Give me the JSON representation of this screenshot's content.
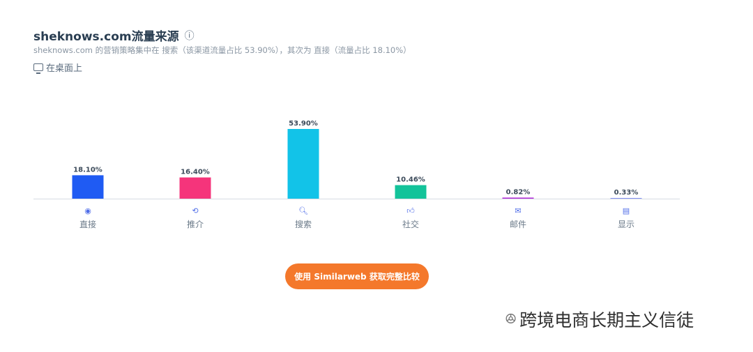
{
  "header": {
    "title": "sheknows.com流量来源",
    "info_icon": "ⓘ",
    "subtitle": "sheknows.com 的营销策略集中在 搜索（该渠道流量占比 53.90%），其次为 直接（流量占比 18.10%）",
    "device_label": "在桌面上"
  },
  "chart_data": {
    "type": "bar",
    "categories": [
      "直接",
      "推介",
      "搜索",
      "社交",
      "邮件",
      "显示"
    ],
    "values": [
      18.1,
      16.4,
      53.9,
      10.46,
      0.82,
      0.33
    ],
    "value_labels": [
      "18.10%",
      "16.40%",
      "53.90%",
      "10.46%",
      "0.82%",
      "0.33%"
    ],
    "colors": [
      "#1f5bf3",
      "#f5347b",
      "#12c3e8",
      "#13c39a",
      "#b02ad8",
      "#8391f2"
    ],
    "icons": [
      "direct-icon",
      "referral-icon",
      "search-icon",
      "social-icon",
      "mail-icon",
      "display-icon"
    ],
    "title": "",
    "xlabel": "",
    "ylabel": "",
    "ylim": [
      0,
      53.9
    ],
    "grid": false,
    "legend": "none"
  },
  "icon_glyphs": [
    "◉",
    "⟲",
    "🔍︎",
    "👍︎",
    "✉",
    "▤"
  ],
  "cta": {
    "label": "使用 Similarweb 获取完整比较"
  },
  "watermark": {
    "icon": "wechat-icon",
    "text": "跨境电商长期主义信徒"
  }
}
